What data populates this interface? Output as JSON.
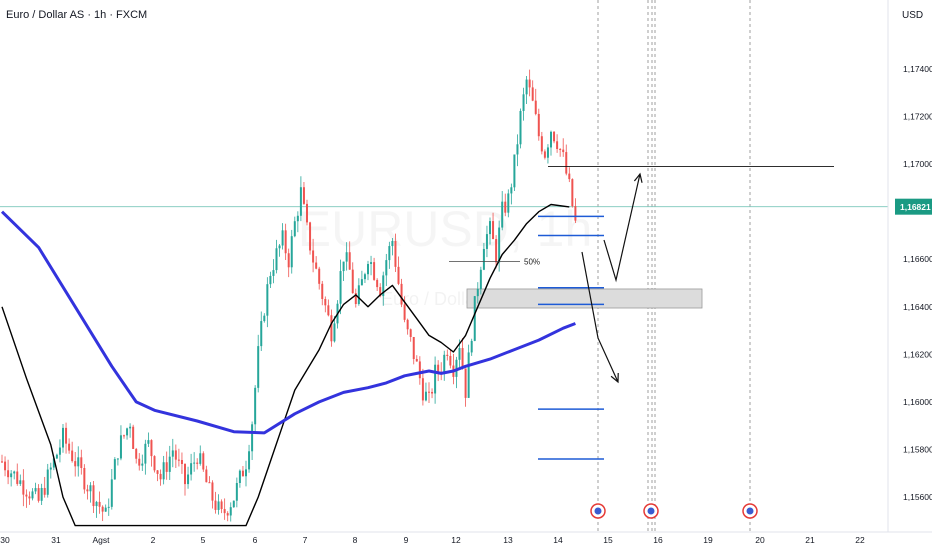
{
  "header": {
    "title": "Euro / Dollar AS · 1h · FXCM",
    "currency": "USD"
  },
  "watermark": {
    "text": "EURUSD, 1h",
    "subtext": "Euro / Dollar AS"
  },
  "colors": {
    "bull": "#26a69a",
    "bear": "#ef5350",
    "ema_fast": "#000000",
    "ema_slow": "#3333dd",
    "level_line": "#1e5bd6",
    "price_label_bg": "#1a9a83",
    "zone_fill": "#dcdcdc",
    "event_icon": "#e53935"
  },
  "chart_data": {
    "type": "candlestick",
    "symbol": "EURUSD",
    "timeframe": "1h",
    "y_axis": {
      "ticks": [
        "1,17400",
        "1,17200",
        "1,17000",
        "1,16600",
        "1,16400",
        "1,16200",
        "1,16000",
        "1,15800",
        "1,15600"
      ],
      "tick_values": [
        1.174,
        1.172,
        1.17,
        1.166,
        1.164,
        1.162,
        1.16,
        1.158,
        1.156
      ],
      "ylim": [
        1.1547,
        1.1769
      ]
    },
    "x_axis": {
      "ticks": [
        "30",
        "31",
        "Agst",
        "2",
        "5",
        "6",
        "7",
        "8",
        "9",
        "12",
        "13",
        "14",
        "15",
        "16",
        "19",
        "20",
        "21",
        "22"
      ]
    },
    "current_price": {
      "label": "1,16821",
      "value": 1.16821
    },
    "path": [
      [
        0,
        1.1575
      ],
      [
        3,
        1.1558
      ],
      [
        5,
        1.1585
      ],
      [
        7,
        1.1565
      ],
      [
        8.5,
        1.1552
      ],
      [
        9.5,
        1.158
      ],
      [
        10.5,
        1.1592
      ],
      [
        11,
        1.1575
      ],
      [
        12,
        1.1582
      ],
      [
        13,
        1.1568
      ],
      [
        14,
        1.158
      ],
      [
        15,
        1.1566
      ],
      [
        16,
        1.1578
      ],
      [
        17,
        1.1562
      ],
      [
        18,
        1.1552
      ],
      [
        19,
        1.156
      ],
      [
        20,
        1.1575
      ],
      [
        20.5,
        1.1592
      ],
      [
        21,
        1.162
      ],
      [
        21.5,
        1.164
      ],
      [
        22,
        1.1655
      ],
      [
        22.5,
        1.1662
      ],
      [
        23,
        1.1668
      ],
      [
        23.5,
        1.166
      ],
      [
        24,
        1.1675
      ],
      [
        24.5,
        1.1688
      ],
      [
        25,
        1.1672
      ],
      [
        25.5,
        1.166
      ],
      [
        26,
        1.165
      ],
      [
        26.5,
        1.164
      ],
      [
        27,
        1.163
      ],
      [
        27.5,
        1.1645
      ],
      [
        28,
        1.1662
      ],
      [
        28.5,
        1.1655
      ],
      [
        29,
        1.164
      ],
      [
        29.5,
        1.165
      ],
      [
        30,
        1.1662
      ],
      [
        30.5,
        1.1655
      ],
      [
        31,
        1.1648
      ],
      [
        31.5,
        1.166
      ],
      [
        32,
        1.1668
      ],
      [
        32.5,
        1.165
      ],
      [
        33,
        1.1632
      ],
      [
        33.5,
        1.1625
      ],
      [
        34,
        1.1615
      ],
      [
        34.5,
        1.1605
      ],
      [
        35,
        1.16
      ],
      [
        35.5,
        1.1612
      ],
      [
        36,
        1.1615
      ],
      [
        36.5,
        1.1623
      ],
      [
        37,
        1.1615
      ],
      [
        37.5,
        1.1625
      ],
      [
        38,
        1.1605
      ],
      [
        38.5,
        1.163
      ],
      [
        39,
        1.165
      ],
      [
        39.5,
        1.1668
      ],
      [
        40,
        1.1672
      ],
      [
        40.5,
        1.1662
      ],
      [
        41,
        1.168
      ],
      [
        41.5,
        1.1685
      ],
      [
        42,
        1.17
      ],
      [
        42.5,
        1.172
      ],
      [
        43,
        1.1735
      ],
      [
        43.5,
        1.1725
      ],
      [
        44,
        1.1712
      ],
      [
        44.5,
        1.1705
      ],
      [
        45,
        1.1715
      ],
      [
        45.5,
        1.171
      ],
      [
        46,
        1.1702
      ],
      [
        46.5,
        1.169
      ],
      [
        47,
        1.1675
      ]
    ],
    "indicators": [
      {
        "type": "moving-average",
        "color": "#000000",
        "points": [
          [
            0,
            1.164
          ],
          [
            2,
            1.161
          ],
          [
            4,
            1.1582
          ],
          [
            5,
            1.156
          ],
          [
            6,
            1.1548
          ],
          [
            20,
            1.1548
          ],
          [
            21,
            1.156
          ],
          [
            22,
            1.1575
          ],
          [
            23,
            1.159
          ],
          [
            24,
            1.1605
          ],
          [
            26,
            1.1622
          ],
          [
            27,
            1.1633
          ],
          [
            28,
            1.1641
          ],
          [
            29,
            1.1645
          ],
          [
            30,
            1.164
          ],
          [
            31,
            1.1645
          ],
          [
            32,
            1.1649
          ],
          [
            33,
            1.1642
          ],
          [
            34,
            1.1635
          ],
          [
            35,
            1.1628
          ],
          [
            36,
            1.1625
          ],
          [
            37,
            1.1621
          ],
          [
            38,
            1.1628
          ],
          [
            39,
            1.164
          ],
          [
            40,
            1.1652
          ],
          [
            41,
            1.1662
          ],
          [
            42,
            1.1668
          ],
          [
            43,
            1.1675
          ],
          [
            44,
            1.168
          ],
          [
            45,
            1.1683
          ],
          [
            46.5,
            1.1682
          ]
        ]
      },
      {
        "type": "moving-average",
        "color": "#3333dd",
        "points": [
          [
            0,
            1.168
          ],
          [
            3,
            1.1665
          ],
          [
            6,
            1.164
          ],
          [
            9,
            1.1615
          ],
          [
            11,
            1.16
          ],
          [
            12.5,
            1.15965
          ],
          [
            16,
            1.1592
          ],
          [
            19,
            1.15875
          ],
          [
            21.5,
            1.1587
          ],
          [
            24,
            1.1595
          ],
          [
            26,
            1.16
          ],
          [
            28,
            1.1604
          ],
          [
            30,
            1.1606
          ],
          [
            31.5,
            1.1608
          ],
          [
            33,
            1.1611
          ],
          [
            34,
            1.1612
          ],
          [
            35,
            1.1613
          ],
          [
            36,
            1.1612
          ],
          [
            37,
            1.1613
          ],
          [
            38,
            1.1615
          ],
          [
            40,
            1.1618
          ],
          [
            42,
            1.1622
          ],
          [
            44,
            1.1626
          ],
          [
            46,
            1.1631
          ],
          [
            47,
            1.1633
          ]
        ]
      }
    ],
    "annotations": {
      "fib_label": "50%",
      "fib_level": 1.1659,
      "resistance_level": 1.1699,
      "support_zone": [
        1.16395,
        1.16475
      ],
      "horizontal_levels": [
        1.1678,
        1.167,
        1.1648,
        1.1641,
        1.1597,
        1.1576
      ],
      "event_count": 3
    }
  }
}
